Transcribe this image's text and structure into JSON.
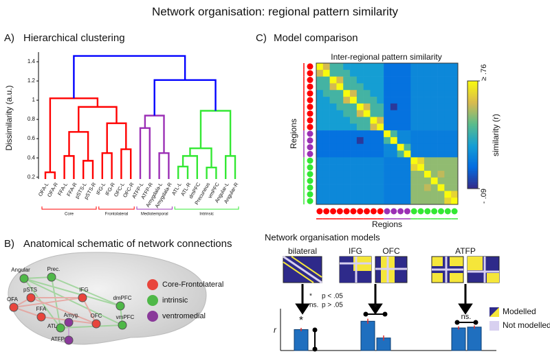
{
  "title": "Network organisation: regional pattern similarity",
  "panel_a": {
    "label": "A)",
    "title": "Hierarchical clustering",
    "ylabel": "Dissimilarity (a.u.)",
    "ylim": [
      0.18,
      1.5
    ],
    "yticks": [
      0.2,
      0.4,
      0.6,
      0.8,
      1,
      1.2,
      1.4
    ],
    "tree": {
      "height": 1.46,
      "color": "#0000ff",
      "children": [
        {
          "height": 1.02,
          "color": "#ff0000",
          "children": [
            {
              "height": 0.25,
              "color": "#ff0000",
              "children": [
                "OFA-L",
                "OFA-R"
              ]
            },
            {
              "height": 0.93,
              "color": "#ff0000",
              "children": [
                {
                  "height": 0.67,
                  "color": "#ff0000",
                  "children": [
                    {
                      "height": 0.42,
                      "color": "#ff0000",
                      "children": [
                        "FFA-L",
                        "FFA-R"
                      ]
                    },
                    {
                      "height": 0.37,
                      "color": "#ff0000",
                      "children": [
                        "pSTS-L",
                        "pSTS-R"
                      ]
                    }
                  ]
                },
                {
                  "height": 0.76,
                  "color": "#ff0000",
                  "children": [
                    {
                      "height": 0.45,
                      "color": "#ff0000",
                      "children": [
                        "IFG-L",
                        "IFG-R"
                      ]
                    },
                    {
                      "height": 0.49,
                      "color": "#ff0000",
                      "children": [
                        "OFC-L",
                        "OFC-R"
                      ]
                    }
                  ]
                }
              ]
            }
          ]
        },
        {
          "height": 1.21,
          "color": "#0000ff",
          "children": [
            {
              "height": 0.84,
              "color": "#9b2fb5",
              "children": [
                {
                  "height": 0.71,
                  "color": "#9b2fb5",
                  "children": [
                    "ATFP-L",
                    "ATFP-R"
                  ]
                },
                {
                  "height": 0.45,
                  "color": "#9b2fb5",
                  "children": [
                    "Amygdala-L",
                    "Amygdala-R"
                  ]
                }
              ]
            },
            {
              "height": 0.89,
              "color": "#33e833",
              "children": [
                {
                  "height": 0.5,
                  "color": "#33e833",
                  "children": [
                    {
                      "height": 0.42,
                      "color": "#33e833",
                      "children": [
                        {
                          "height": 0.31,
                          "color": "#33e833",
                          "children": [
                            "ATL-L",
                            "ATL-R"
                          ]
                        },
                        "dmPFC"
                      ]
                    },
                    {
                      "height": 0.3,
                      "color": "#33e833",
                      "children": [
                        "Precuneus",
                        "vmPFC"
                      ]
                    }
                  ]
                },
                {
                  "height": 0.42,
                  "color": "#33e833",
                  "children": [
                    "Angular-L",
                    "Angular-R"
                  ]
                }
              ]
            }
          ]
        }
      ]
    },
    "groups": [
      {
        "name": "Core",
        "from": "OFA-L",
        "to": "pSTS-R",
        "color": "#ff0000"
      },
      {
        "name": "Frontolateral",
        "from": "IFG-L",
        "to": "OFC-R",
        "color": "#ff0000"
      },
      {
        "name": "Mediotemporal",
        "from": "ATFP-L",
        "to": "Amygdala-R",
        "color": "#9b2fb5"
      },
      {
        "name": "Intrinsic",
        "from": "ATL-L",
        "to": "Angular-R",
        "color": "#33e833"
      }
    ]
  },
  "panel_b": {
    "label": "B)",
    "title": "Anatomical schematic of network connections",
    "nodes": [
      "Angular",
      "Prec.",
      "pSTS",
      "OFA",
      "FFA",
      "IFG",
      "dmPFC",
      "Amyg.",
      "OFC",
      "vmPFC",
      "ATL",
      "ATFP"
    ],
    "legend": [
      {
        "name": "Core-Frontolateral",
        "color": "#e8453c"
      },
      {
        "name": "intrinsic",
        "color": "#4fb848"
      },
      {
        "name": "ventromedial",
        "color": "#8a3a9a"
      }
    ]
  },
  "panel_c": {
    "label": "C)",
    "title": "Model comparison",
    "heatmap": {
      "title": "Inter-regional pattern similarity",
      "xlabel": "Regions",
      "ylabel": "Regions",
      "colorbar_label": "similarity (r)",
      "vlim": [
        0.09,
        0.76
      ],
      "ticks": [
        {
          "value": 0.76,
          "label": "≥ .76"
        },
        {
          "value": 0.09,
          "label": "- .09"
        }
      ],
      "matrix": [
        [
          0.76,
          0.62,
          0.45,
          0.45,
          0.36,
          0.36,
          0.36,
          0.36,
          0.36,
          0.36,
          0.24,
          0.24,
          0.24,
          0.24,
          0.3,
          0.3,
          0.3,
          0.3,
          0.3,
          0.3,
          0.3
        ],
        [
          0.62,
          0.76,
          0.45,
          0.45,
          0.45,
          0.36,
          0.36,
          0.36,
          0.36,
          0.36,
          0.24,
          0.24,
          0.24,
          0.24,
          0.3,
          0.3,
          0.3,
          0.3,
          0.3,
          0.3,
          0.3
        ],
        [
          0.45,
          0.45,
          0.76,
          0.62,
          0.45,
          0.45,
          0.36,
          0.36,
          0.36,
          0.36,
          0.24,
          0.24,
          0.24,
          0.24,
          0.3,
          0.3,
          0.3,
          0.3,
          0.3,
          0.3,
          0.3
        ],
        [
          0.45,
          0.45,
          0.62,
          0.76,
          0.45,
          0.45,
          0.45,
          0.36,
          0.36,
          0.36,
          0.24,
          0.24,
          0.24,
          0.24,
          0.3,
          0.3,
          0.3,
          0.3,
          0.3,
          0.3,
          0.3
        ],
        [
          0.36,
          0.45,
          0.45,
          0.45,
          0.76,
          0.62,
          0.45,
          0.45,
          0.36,
          0.36,
          0.24,
          0.24,
          0.24,
          0.24,
          0.3,
          0.3,
          0.3,
          0.3,
          0.3,
          0.3,
          0.3
        ],
        [
          0.36,
          0.36,
          0.45,
          0.45,
          0.62,
          0.76,
          0.45,
          0.45,
          0.45,
          0.36,
          0.24,
          0.24,
          0.24,
          0.24,
          0.3,
          0.3,
          0.3,
          0.3,
          0.3,
          0.3,
          0.3
        ],
        [
          0.36,
          0.36,
          0.36,
          0.45,
          0.45,
          0.45,
          0.76,
          0.62,
          0.45,
          0.45,
          0.24,
          0.12,
          0.24,
          0.24,
          0.3,
          0.3,
          0.3,
          0.3,
          0.3,
          0.3,
          0.3
        ],
        [
          0.36,
          0.36,
          0.36,
          0.36,
          0.45,
          0.45,
          0.62,
          0.76,
          0.45,
          0.45,
          0.24,
          0.24,
          0.24,
          0.24,
          0.3,
          0.3,
          0.3,
          0.3,
          0.3,
          0.3,
          0.3
        ],
        [
          0.36,
          0.36,
          0.36,
          0.36,
          0.36,
          0.45,
          0.45,
          0.45,
          0.76,
          0.62,
          0.24,
          0.24,
          0.24,
          0.24,
          0.3,
          0.3,
          0.3,
          0.3,
          0.3,
          0.3,
          0.3
        ],
        [
          0.36,
          0.36,
          0.36,
          0.36,
          0.36,
          0.36,
          0.45,
          0.45,
          0.62,
          0.76,
          0.24,
          0.24,
          0.24,
          0.24,
          0.3,
          0.3,
          0.3,
          0.3,
          0.3,
          0.3,
          0.3
        ],
        [
          0.24,
          0.24,
          0.24,
          0.24,
          0.24,
          0.24,
          0.24,
          0.24,
          0.24,
          0.24,
          0.76,
          0.46,
          0.3,
          0.3,
          0.27,
          0.27,
          0.27,
          0.27,
          0.27,
          0.27,
          0.27
        ],
        [
          0.24,
          0.24,
          0.24,
          0.24,
          0.24,
          0.24,
          0.12,
          0.24,
          0.24,
          0.24,
          0.46,
          0.76,
          0.3,
          0.3,
          0.27,
          0.27,
          0.27,
          0.27,
          0.27,
          0.27,
          0.27
        ],
        [
          0.24,
          0.24,
          0.24,
          0.24,
          0.24,
          0.24,
          0.24,
          0.24,
          0.24,
          0.24,
          0.3,
          0.3,
          0.76,
          0.46,
          0.27,
          0.27,
          0.27,
          0.27,
          0.27,
          0.27,
          0.27
        ],
        [
          0.24,
          0.24,
          0.24,
          0.24,
          0.24,
          0.24,
          0.24,
          0.24,
          0.24,
          0.24,
          0.3,
          0.3,
          0.46,
          0.76,
          0.27,
          0.27,
          0.27,
          0.27,
          0.27,
          0.27,
          0.27
        ],
        [
          0.3,
          0.3,
          0.3,
          0.3,
          0.3,
          0.3,
          0.3,
          0.3,
          0.3,
          0.3,
          0.27,
          0.27,
          0.27,
          0.27,
          0.76,
          0.68,
          0.55,
          0.55,
          0.55,
          0.55,
          0.55
        ],
        [
          0.3,
          0.3,
          0.3,
          0.3,
          0.3,
          0.3,
          0.3,
          0.3,
          0.3,
          0.3,
          0.27,
          0.27,
          0.27,
          0.27,
          0.68,
          0.76,
          0.55,
          0.55,
          0.55,
          0.55,
          0.55
        ],
        [
          0.3,
          0.3,
          0.3,
          0.3,
          0.3,
          0.3,
          0.3,
          0.3,
          0.3,
          0.3,
          0.27,
          0.27,
          0.27,
          0.27,
          0.55,
          0.55,
          0.76,
          0.55,
          0.6,
          0.55,
          0.55
        ],
        [
          0.3,
          0.3,
          0.3,
          0.3,
          0.3,
          0.3,
          0.3,
          0.3,
          0.3,
          0.3,
          0.27,
          0.27,
          0.27,
          0.27,
          0.55,
          0.55,
          0.55,
          0.76,
          0.55,
          0.55,
          0.55
        ],
        [
          0.3,
          0.3,
          0.3,
          0.3,
          0.3,
          0.3,
          0.3,
          0.3,
          0.3,
          0.3,
          0.27,
          0.27,
          0.27,
          0.27,
          0.55,
          0.55,
          0.6,
          0.55,
          0.76,
          0.55,
          0.55
        ],
        [
          0.3,
          0.3,
          0.3,
          0.3,
          0.3,
          0.3,
          0.3,
          0.3,
          0.3,
          0.3,
          0.27,
          0.27,
          0.27,
          0.27,
          0.55,
          0.55,
          0.55,
          0.55,
          0.55,
          0.76,
          0.68
        ],
        [
          0.3,
          0.3,
          0.3,
          0.3,
          0.3,
          0.3,
          0.3,
          0.3,
          0.3,
          0.3,
          0.27,
          0.27,
          0.27,
          0.27,
          0.55,
          0.55,
          0.55,
          0.55,
          0.55,
          0.68,
          0.76
        ]
      ]
    },
    "models": {
      "title": "Network organisation models",
      "names": [
        "bilateral",
        "IFG",
        "OFC",
        "ATFP"
      ],
      "legend": [
        "Modelled",
        "Not modelled"
      ],
      "significance": [
        {
          "symbol": "*",
          "text": "p < .05"
        },
        {
          "symbol": "ns.",
          "text": "p > .05"
        }
      ]
    },
    "bar_chart": {
      "type": "bar",
      "ylabel": "r",
      "categories": [
        null,
        null,
        null,
        null,
        null
      ],
      "values": [
        0.25,
        0.35,
        0.15,
        0.27,
        0.28
      ],
      "errors": [
        0.02,
        0.03,
        0.03,
        0.02,
        0.02
      ],
      "color": "#1f6fbf",
      "error_color": "#e03030",
      "ylim": [
        0,
        0.5
      ],
      "annotations": [
        "*",
        "*",
        "ns."
      ]
    }
  }
}
